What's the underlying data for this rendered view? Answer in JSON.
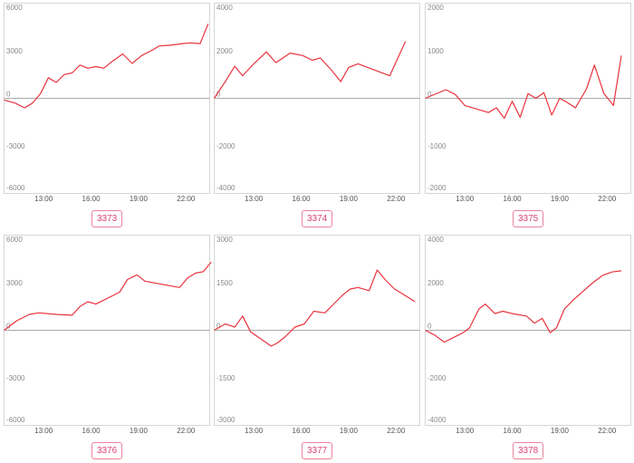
{
  "colors": {
    "line": "#e8333d",
    "tag_text": "#d9437a",
    "tag_border": "#e8839d"
  },
  "chart_data": [
    {
      "type": "line",
      "id": "3373",
      "label": "3373",
      "ylim": [
        -6000,
        6000
      ],
      "yticks": [
        6000,
        3000,
        0,
        -3000,
        -6000
      ],
      "xticks": [
        "13:00",
        "16:00",
        "19:00",
        "22:00"
      ],
      "xlim": [
        10.5,
        23.5
      ],
      "grid": false,
      "series": [
        {
          "x": [
            10.5,
            11.2,
            11.8,
            12.3,
            12.8,
            13.3,
            13.8,
            14.3,
            14.8,
            15.3,
            15.8,
            16.3,
            16.8,
            17.3,
            18.0,
            18.6,
            19.2,
            19.8,
            20.3,
            21.0,
            21.8,
            22.3,
            22.9,
            23.4
          ],
          "y": [
            -100,
            -300,
            -600,
            -300,
            300,
            1300,
            1000,
            1500,
            1600,
            2100,
            1900,
            2000,
            1900,
            2300,
            2800,
            2200,
            2700,
            3000,
            3300,
            3350,
            3450,
            3500,
            3450,
            4700
          ]
        }
      ]
    },
    {
      "type": "line",
      "id": "3374",
      "label": "3374",
      "ylim": [
        -4000,
        4000
      ],
      "yticks": [
        4000,
        2000,
        0,
        -2000,
        -4000
      ],
      "xticks": [
        "13:00",
        "16:00",
        "19:00",
        "22:00"
      ],
      "xlim": [
        10.5,
        23.5
      ],
      "grid": false,
      "series": [
        {
          "x": [
            10.5,
            11.2,
            11.8,
            12.3,
            13.0,
            13.8,
            14.4,
            15.3,
            16.1,
            16.7,
            17.2,
            17.9,
            18.5,
            19.0,
            19.6,
            20.2,
            21.6,
            22.6
          ],
          "y": [
            0,
            700,
            1350,
            950,
            1450,
            1950,
            1500,
            1900,
            1800,
            1600,
            1700,
            1200,
            700,
            1300,
            1450,
            1300,
            950,
            2400
          ]
        }
      ]
    },
    {
      "type": "line",
      "id": "3375",
      "label": "3375",
      "ylim": [
        -2000,
        2000
      ],
      "yticks": [
        2000,
        1000,
        0,
        -1000,
        -2000
      ],
      "xticks": [
        "13:00",
        "16:00",
        "19:00",
        "22:00"
      ],
      "xlim": [
        10.5,
        23.5
      ],
      "grid": false,
      "series": [
        {
          "x": [
            10.5,
            11.8,
            12.4,
            13.0,
            14.5,
            15.0,
            15.5,
            16.0,
            16.5,
            17.0,
            17.5,
            18.0,
            18.5,
            19.0,
            19.4,
            20.0,
            20.7,
            21.2,
            21.8,
            22.4,
            22.9
          ],
          "y": [
            0,
            180,
            80,
            -150,
            -300,
            -200,
            -420,
            -60,
            -400,
            100,
            0,
            120,
            -350,
            0,
            -70,
            -200,
            200,
            700,
            100,
            -150,
            900
          ]
        }
      ]
    },
    {
      "type": "line",
      "id": "3376",
      "label": "3376",
      "ylim": [
        -6000,
        6000
      ],
      "yticks": [
        6000,
        3000,
        0,
        -3000,
        -6000
      ],
      "xticks": [
        "13:00",
        "16:00",
        "19:00",
        "22:00"
      ],
      "xlim": [
        10.5,
        23.5
      ],
      "grid": false,
      "series": [
        {
          "x": [
            10.5,
            11.3,
            12.1,
            12.7,
            13.8,
            14.8,
            15.3,
            15.8,
            16.3,
            16.8,
            17.8,
            18.3,
            18.9,
            19.4,
            21.6,
            22.1,
            22.6,
            23.1,
            23.6
          ],
          "y": [
            0,
            600,
            1000,
            1100,
            1000,
            950,
            1500,
            1800,
            1650,
            1900,
            2400,
            3200,
            3500,
            3100,
            2700,
            3300,
            3600,
            3700,
            4300
          ]
        }
      ]
    },
    {
      "type": "line",
      "id": "3377",
      "label": "3377",
      "ylim": [
        -3000,
        3000
      ],
      "yticks": [
        3000,
        1500,
        0,
        -1500,
        -3000
      ],
      "xticks": [
        "13:00",
        "16:00",
        "19:00",
        "22:00"
      ],
      "xlim": [
        10.5,
        23.5
      ],
      "grid": false,
      "series": [
        {
          "x": [
            10.5,
            11.2,
            11.8,
            12.3,
            12.8,
            14.1,
            14.5,
            15.0,
            15.6,
            16.2,
            16.8,
            17.5,
            18.0,
            18.6,
            19.1,
            19.6,
            20.3,
            20.8,
            21.3,
            21.9,
            22.4,
            23.2
          ],
          "y": [
            0,
            200,
            100,
            450,
            -50,
            -500,
            -400,
            -200,
            100,
            200,
            600,
            550,
            800,
            1100,
            1300,
            1350,
            1250,
            1900,
            1600,
            1300,
            1150,
            900
          ]
        }
      ]
    },
    {
      "type": "line",
      "id": "3378",
      "label": "3378",
      "ylim": [
        -4000,
        4000
      ],
      "yticks": [
        4000,
        2000,
        0,
        -2000,
        -4000
      ],
      "xticks": [
        "13:00",
        "16:00",
        "19:00",
        "22:00"
      ],
      "xlim": [
        10.5,
        23.5
      ],
      "grid": false,
      "series": [
        {
          "x": [
            10.5,
            11.1,
            11.7,
            12.9,
            13.3,
            13.9,
            14.3,
            14.9,
            15.4,
            16.0,
            16.9,
            17.4,
            17.9,
            18.4,
            18.8,
            19.3,
            19.9,
            20.5,
            21.1,
            21.7,
            22.3,
            22.9
          ],
          "y": [
            0,
            -200,
            -500,
            -100,
            100,
            900,
            1100,
            700,
            800,
            700,
            600,
            300,
            500,
            -100,
            100,
            900,
            1300,
            1650,
            2000,
            2300,
            2450,
            2500
          ]
        }
      ]
    }
  ]
}
